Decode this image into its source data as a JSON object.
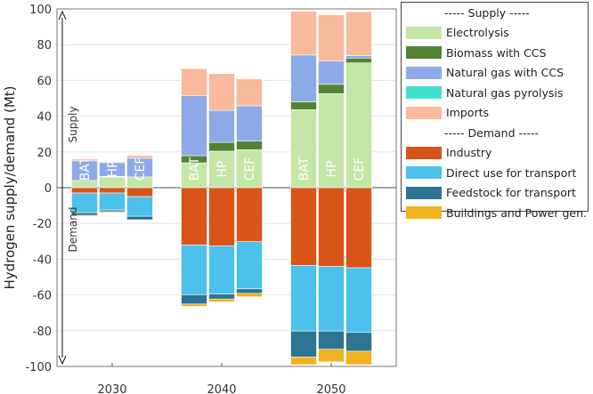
{
  "chart_data": {
    "type": "bar",
    "stacked": true,
    "ylabel": "Hydrogen supply/demand (Mt)",
    "xlabel": "",
    "ylim": [
      -100,
      100
    ],
    "yticks": [
      100,
      80,
      60,
      40,
      20,
      0,
      -20,
      -40,
      -60,
      -80,
      -100
    ],
    "grid": true,
    "legend_position": "right",
    "annotations": {
      "supply": "Supply",
      "demand": "Demand"
    },
    "legend_headers": {
      "supply": "----- Supply -----",
      "demand": "----- Demand -----"
    },
    "scenarios": [
      "BAT",
      "HP",
      "CEF"
    ],
    "years": [
      "2030",
      "2040",
      "2050"
    ],
    "supply_series": [
      {
        "name": "Electrolysis",
        "color": "#c4e6a6",
        "values": [
          [
            4,
            6,
            6
          ],
          [
            13.9,
            20.4,
            21.2
          ],
          [
            43.6,
            52.6,
            69.8
          ]
        ]
      },
      {
        "name": "Biomass with CCS",
        "color": "#548235",
        "values": [
          [
            0,
            0.3,
            0
          ],
          [
            4,
            4.9,
            4.9
          ],
          [
            4.4,
            5.2,
            2.7
          ]
        ]
      },
      {
        "name": "Natural gas with CCS",
        "color": "#8eaae6",
        "values": [
          [
            11,
            7.7,
            10.5
          ],
          [
            33.5,
            17.9,
            19.7
          ],
          [
            26.2,
            13.1,
            1.4
          ]
        ]
      },
      {
        "name": "Natural gas pyrolysis",
        "color": "#40e0d0",
        "values": [
          [
            0,
            0,
            0
          ],
          [
            0,
            0,
            0
          ],
          [
            0,
            0,
            0
          ]
        ]
      },
      {
        "name": "Imports",
        "color": "#f8b99c",
        "values": [
          [
            1,
            0.5,
            1.5
          ],
          [
            15.2,
            20.6,
            15
          ],
          [
            24.5,
            25.8,
            24.5
          ]
        ]
      }
    ],
    "demand_series": [
      {
        "name": "Industry",
        "color": "#d95419",
        "values": [
          [
            3,
            3,
            5
          ],
          [
            32.1,
            32.5,
            30.2
          ],
          [
            43.5,
            44.1,
            44.8
          ]
        ]
      },
      {
        "name": "Direct use for transport",
        "color": "#4dc0ec",
        "values": [
          [
            11,
            9.5,
            11
          ],
          [
            27.8,
            27,
            26.4
          ],
          [
            36.7,
            36.1,
            36.2
          ]
        ]
      },
      {
        "name": "Feedstock for transport",
        "color": "#2e7391",
        "values": [
          [
            1.5,
            1,
            2
          ],
          [
            5.2,
            2.8,
            2.5
          ],
          [
            14.6,
            10.2,
            10.5
          ]
        ]
      },
      {
        "name": "Buildings and Power gen.",
        "color": "#efb21e",
        "values": [
          [
            0.5,
            0.5,
            0.3
          ],
          [
            1.3,
            1.6,
            1.9
          ],
          [
            4.2,
            7,
            7.5
          ]
        ]
      }
    ]
  }
}
